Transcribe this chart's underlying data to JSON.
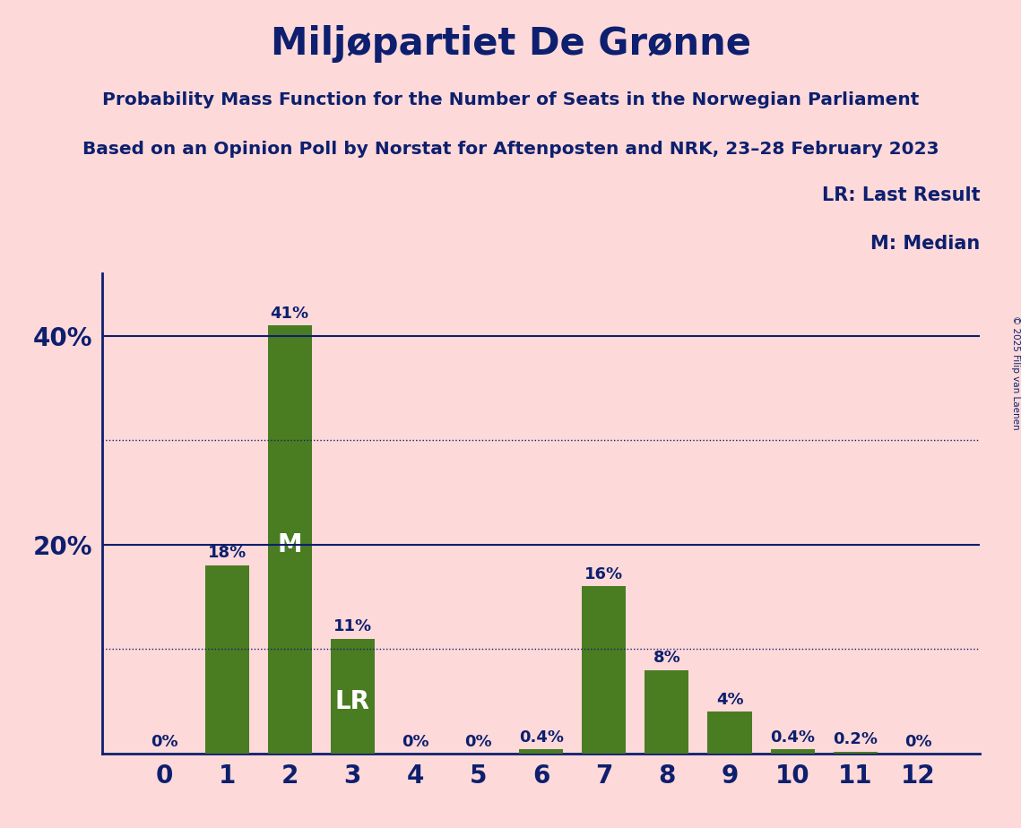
{
  "title": "Miljøpartiet De Grønne",
  "subtitle1": "Probability Mass Function for the Number of Seats in the Norwegian Parliament",
  "subtitle2": "Based on an Opinion Poll by Norstat for Aftenposten and NRK, 23–28 February 2023",
  "copyright": "© 2025 Filip van Laenen",
  "lr_label": "LR: Last Result",
  "m_label": "M: Median",
  "categories": [
    0,
    1,
    2,
    3,
    4,
    5,
    6,
    7,
    8,
    9,
    10,
    11,
    12
  ],
  "values": [
    0.0,
    0.18,
    0.41,
    0.11,
    0.0,
    0.0,
    0.004,
    0.16,
    0.08,
    0.04,
    0.004,
    0.002,
    0.0
  ],
  "bar_labels": [
    "0%",
    "18%",
    "41%",
    "11%",
    "0%",
    "0%",
    "0.4%",
    "16%",
    "8%",
    "4%",
    "0.4%",
    "0.2%",
    "0%"
  ],
  "bar_color": "#4a7c22",
  "bg_color": "#fdd9d9",
  "text_color": "#0d1f6e",
  "median_seat": 2,
  "lr_seat": 3,
  "yticks": [
    0.0,
    0.2,
    0.4
  ],
  "ytick_labels": [
    "",
    "20%",
    "40%"
  ],
  "solid_lines": [
    0.2,
    0.4
  ],
  "dotted_lines": [
    0.1,
    0.3
  ],
  "ylim": [
    0,
    0.46
  ]
}
